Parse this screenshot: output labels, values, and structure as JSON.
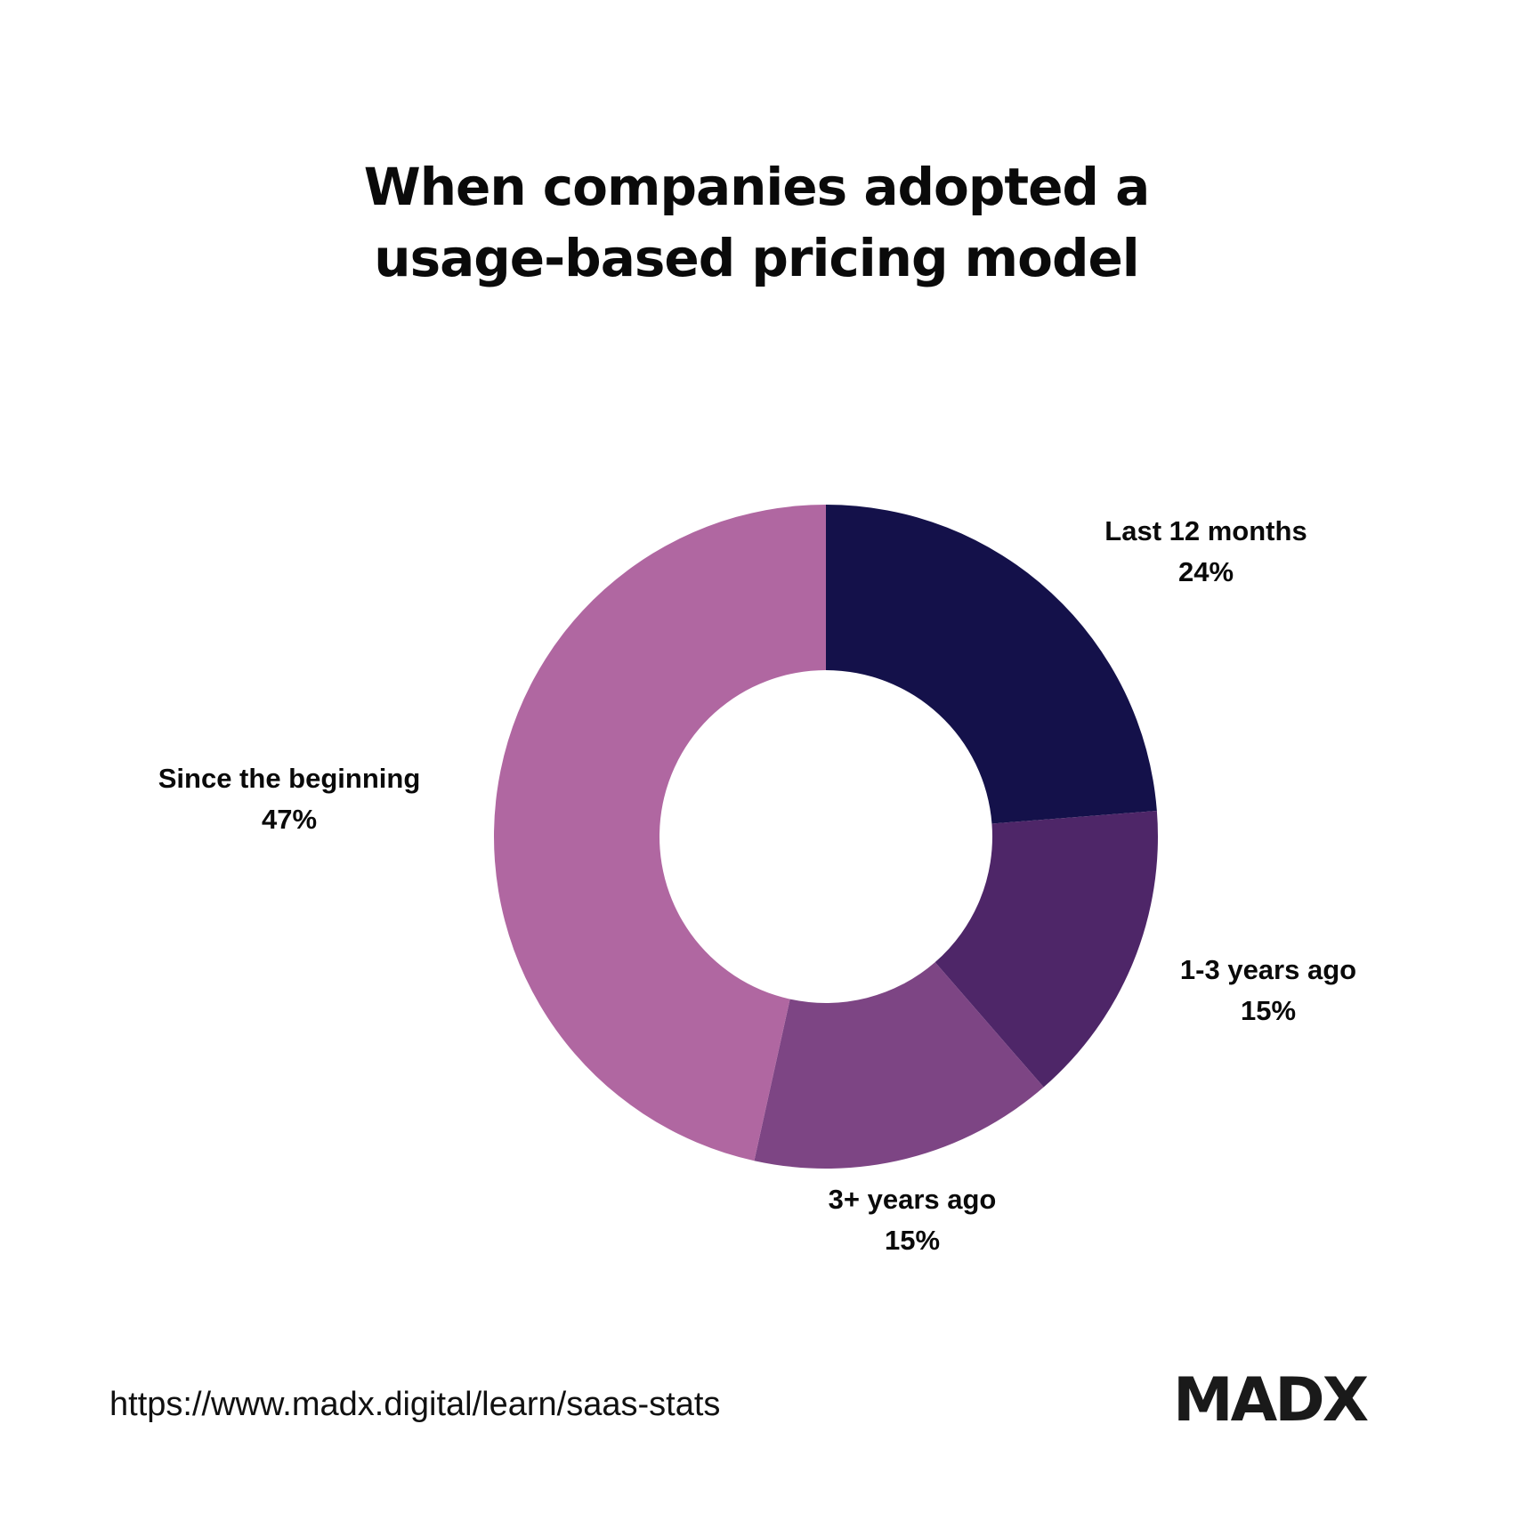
{
  "header": {
    "title_line1": "When companies adopted a",
    "title_line2": "usage-based pricing model"
  },
  "chart_data": {
    "type": "pie",
    "variant": "donut",
    "title": "When companies adopted a usage-based pricing model",
    "start_angle": "12 o'clock, clockwise",
    "categories": [
      "Last 12 months",
      "1-3 years ago",
      "3+ years ago",
      "Since the beginning"
    ],
    "values": [
      24,
      15,
      15,
      47
    ],
    "value_labels": [
      "24%",
      "15%",
      "15%",
      "47%"
    ],
    "colors": [
      "#14114a",
      "#4e2668",
      "#7d4584",
      "#b067a1"
    ],
    "legend": "none (labels placed beside slices)"
  },
  "footer": {
    "source_url": "https://www.madx.digital/learn/saas-stats",
    "logo_text": "MADX"
  }
}
